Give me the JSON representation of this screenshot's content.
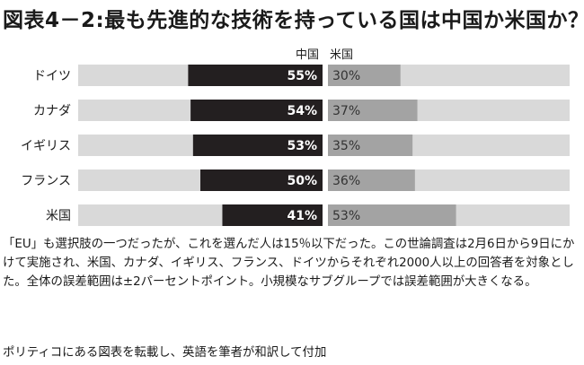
{
  "title": "図表4－2:最も先進的な技術を持っている国は中国か米国か？",
  "chart_data": {
    "type": "bar",
    "categories": [
      "ドイツ",
      "カナダ",
      "イギリス",
      "フランス",
      "米国"
    ],
    "series": [
      {
        "name": "中国",
        "values": [
          55,
          54,
          53,
          50,
          41
        ],
        "color": "#231f20"
      },
      {
        "name": "米国",
        "values": [
          30,
          37,
          35,
          36,
          53
        ],
        "color": "#a3a3a3"
      }
    ],
    "value_suffix": "%",
    "ylim": [
      0,
      100
    ],
    "track_color": "#d9d9d9",
    "legend_position": "top"
  },
  "note": "「EU」も選択肢の一つだったが、これを選んだ人は15％以下だった。この世論調査は2月6日から9日にかけて実施され、米国、カナダ、イギリス、フランス、ドイツからそれぞれ2000人以上の回答者を対象とした。全体の誤差範囲は±2パーセントポイント。小規模なサブグループでは誤差範囲が大きくなる。",
  "credit": "ポリティコにある図表を転載し、英語を筆者が和訳して付加"
}
